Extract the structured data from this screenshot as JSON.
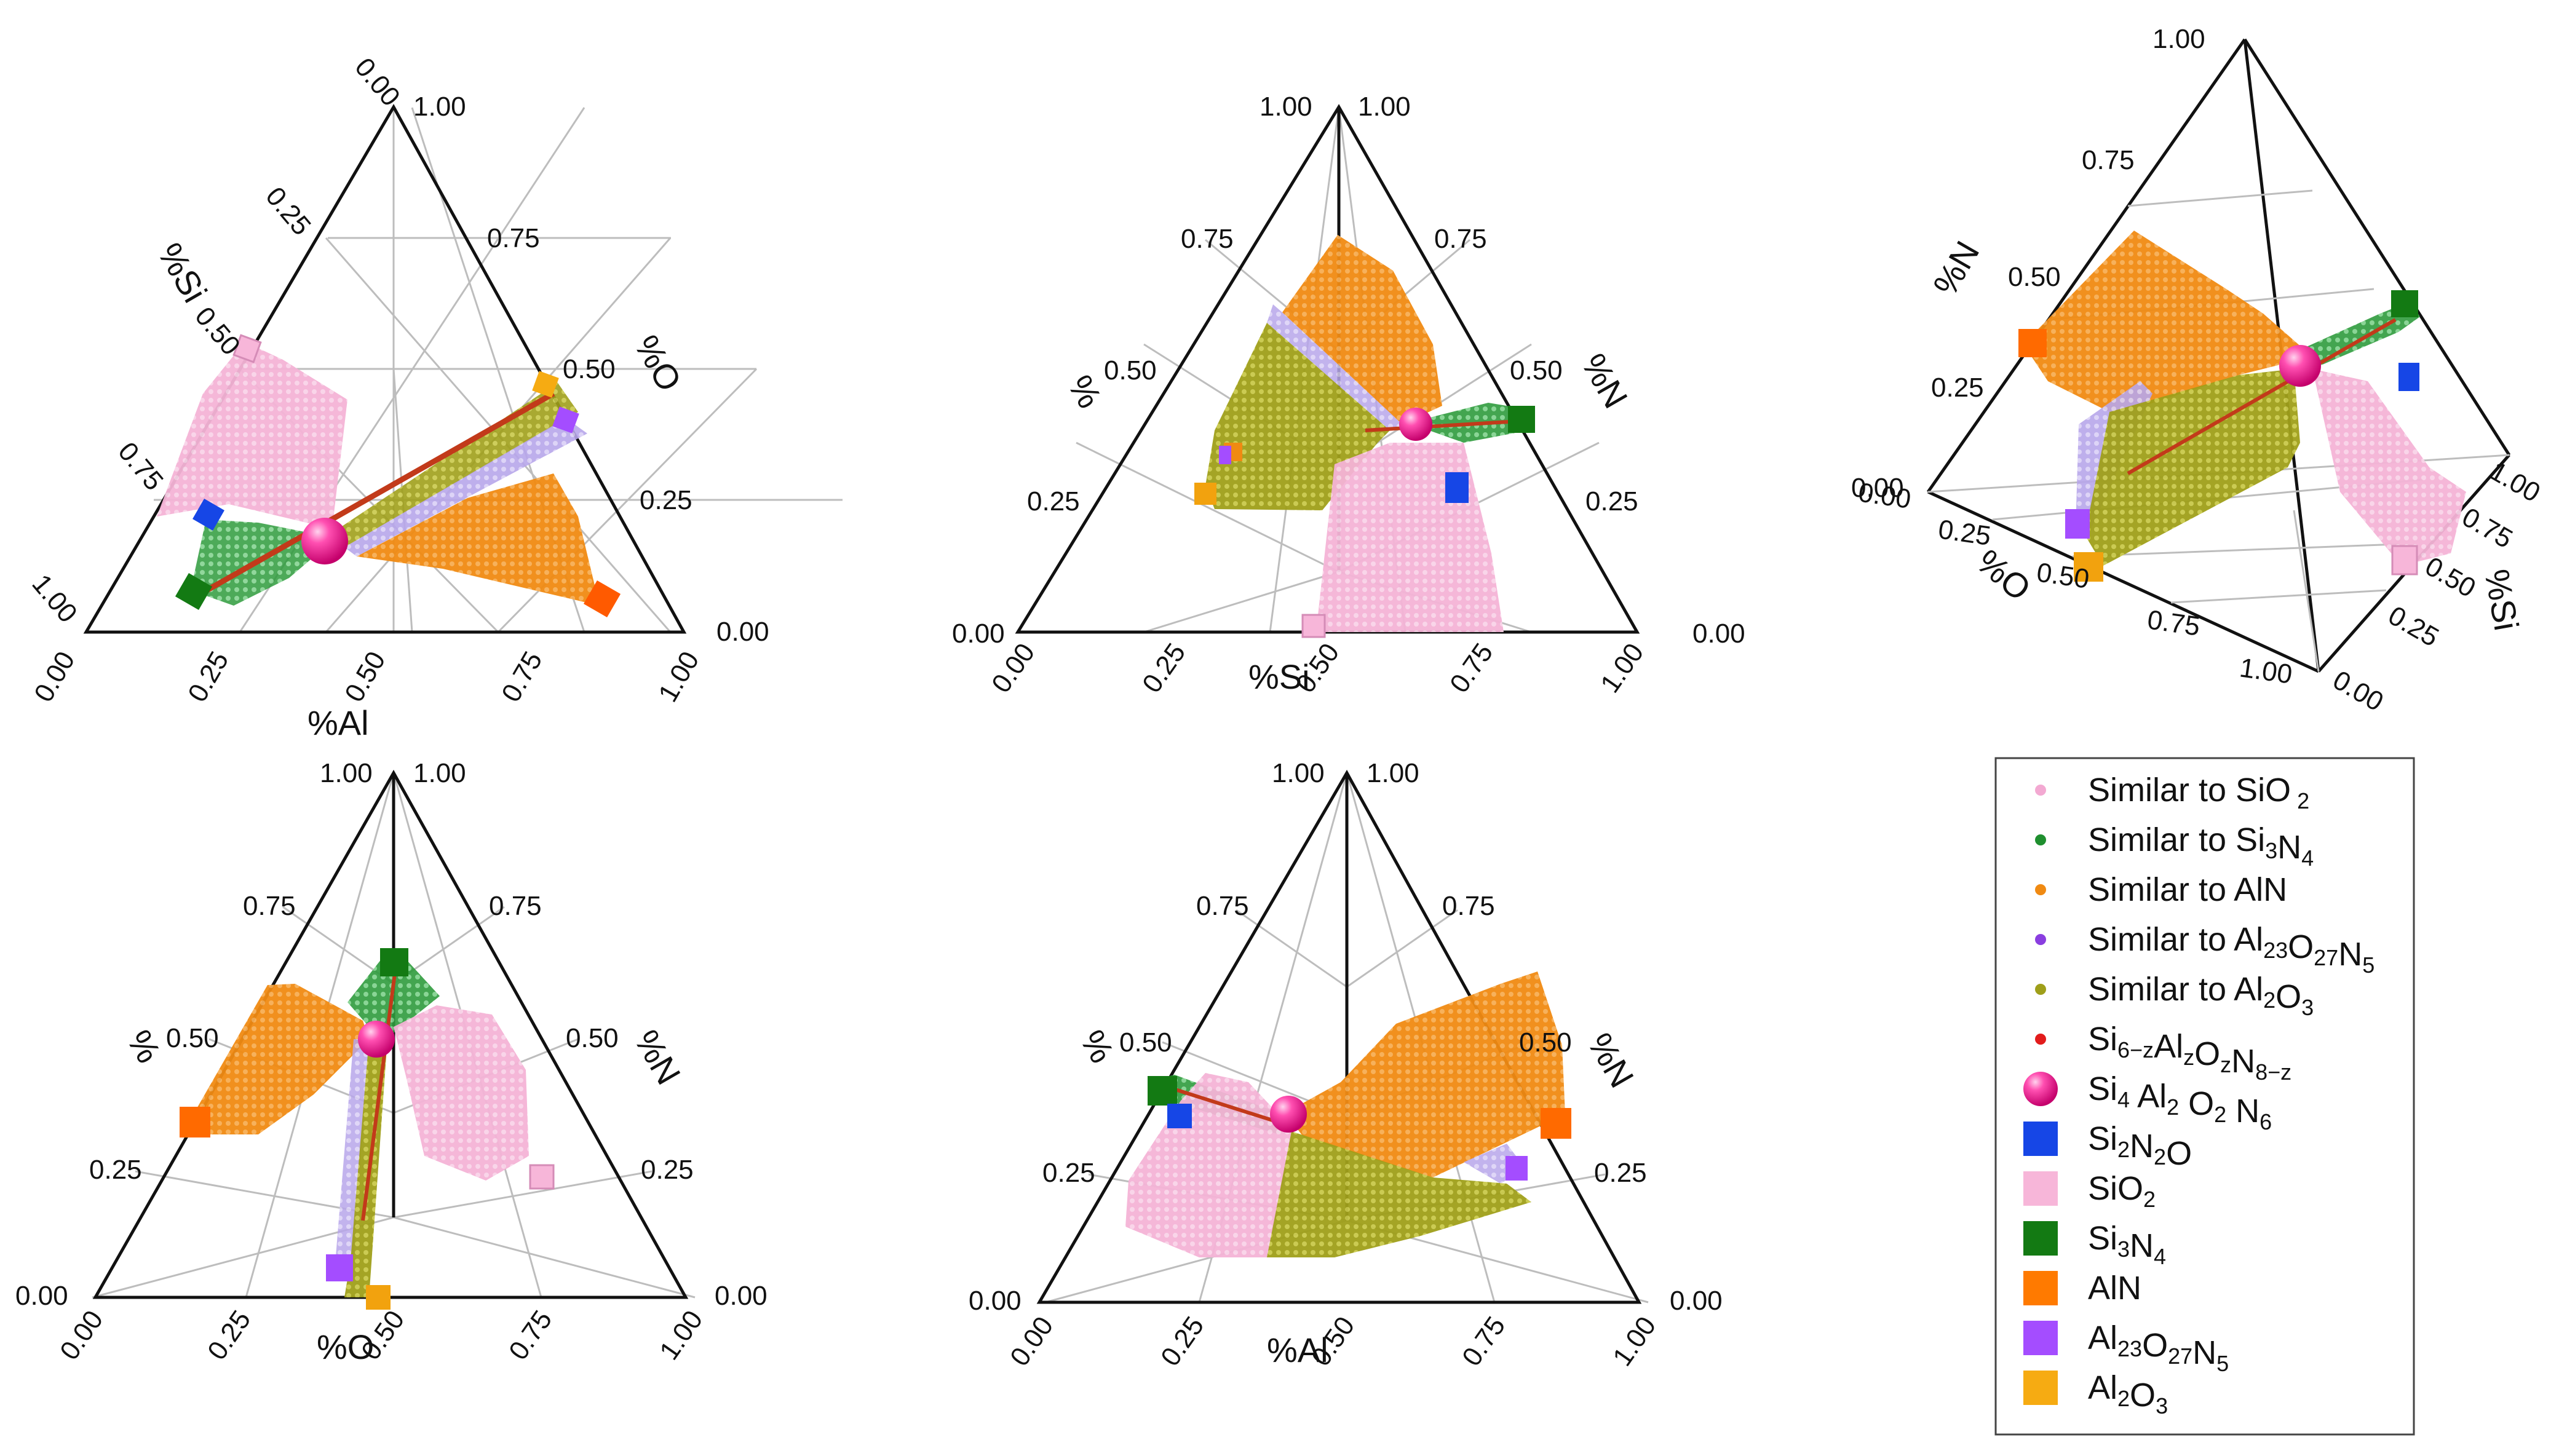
{
  "colors": {
    "sio2": "#f3a9d2",
    "si3n4": "#1f8f2f",
    "aln": "#f08a12",
    "al23o27n5": "#9b4de0",
    "al2o3": "#9f9f1a",
    "sialon_line": "#c23a1a",
    "sialon_sphere": "#ff2f9a",
    "si2n2o": "#1646e6",
    "al2o3_marker": "#f2a20e",
    "si3n4_marker": "#1e7a1e",
    "aln_marker": "#ff7a00",
    "al23_marker": "#a44dff",
    "sio2_marker": "#f5b9d8"
  },
  "chart_data": [
    {
      "type": "ternary",
      "panel": "top-left",
      "tick_labels": {
        "left": [
          "0.00",
          "0.25",
          "0.50",
          "0.75",
          "1.00"
        ],
        "right": [
          "1.00",
          "0.75",
          "0.50",
          "0.25",
          "0.00"
        ],
        "bottom": [
          "0.00",
          "0.25",
          "0.50",
          "0.75",
          "1.00"
        ]
      },
      "axis_labels": {
        "left": "%Si",
        "right": "%O",
        "bottom": "%Al"
      }
    },
    {
      "type": "ternary",
      "panel": "top-middle",
      "tick_labels": {
        "left": [
          "0.00",
          "0.25",
          "0.50",
          "0.75",
          "1.00"
        ],
        "right": [
          "1.00",
          "0.75",
          "0.50",
          "0.25",
          "0.00"
        ],
        "bottom": [
          "0.00",
          "0.25",
          "0.50",
          "0.75",
          "1.00"
        ]
      },
      "axis_labels": {
        "left": "%",
        "right": "%N",
        "bottom": "%Si"
      }
    },
    {
      "type": "tetrahedron",
      "panel": "top-right",
      "tick_labels": {
        "vertical": [
          "1.00",
          "0.75",
          "0.50",
          "0.25",
          "0.00"
        ],
        "left_edge": [
          "0.00",
          "0.25",
          "0.50",
          "0.75",
          "1.00"
        ],
        "right_edge": [
          "1.00",
          "0.75",
          "0.50",
          "0.25",
          "0.00"
        ],
        "left_corner": "0.00"
      },
      "axis_labels": {
        "vertical": "%N",
        "left_edge": "%O",
        "right_edge": "%Si"
      }
    },
    {
      "type": "ternary",
      "panel": "bottom-left",
      "tick_labels": {
        "left": [
          "0.00",
          "0.25",
          "0.50",
          "0.75",
          "1.00"
        ],
        "right": [
          "1.00",
          "0.75",
          "0.50",
          "0.25",
          "0.00"
        ],
        "bottom": [
          "0.00",
          "0.25",
          "0.50",
          "0.75",
          "1.00"
        ]
      },
      "axis_labels": {
        "left": "%",
        "right": "%N",
        "bottom": "%O"
      }
    },
    {
      "type": "ternary",
      "panel": "bottom-middle",
      "tick_labels": {
        "left": [
          "0.00",
          "0.25",
          "0.50",
          "0.75",
          "1.00"
        ],
        "right": [
          "1.00",
          "0.75",
          "0.50",
          "0.25",
          "0.00"
        ],
        "bottom": [
          "0.00",
          "0.25",
          "0.50",
          "0.75",
          "1.00"
        ]
      },
      "axis_labels": {
        "left": "%",
        "right": "%N",
        "bottom": "%Al"
      }
    }
  ],
  "legend": [
    {
      "marker": "dot",
      "color": "#f3a9d2",
      "parts": [
        [
          "Similar to SiO",
          ""
        ],
        [
          " 2",
          "sub"
        ]
      ]
    },
    {
      "marker": "dot",
      "color": "#1f8f2f",
      "parts": [
        [
          "Similar to Si",
          ""
        ],
        [
          "3",
          "sub"
        ],
        [
          "N",
          ""
        ],
        [
          "4",
          "sub"
        ]
      ]
    },
    {
      "marker": "dot",
      "color": "#f08a12",
      "parts": [
        [
          "Similar to AlN",
          ""
        ]
      ]
    },
    {
      "marker": "dot",
      "color": "#8a3ee0",
      "parts": [
        [
          "Similar to Al",
          ""
        ],
        [
          "23",
          "sub"
        ],
        [
          "O",
          ""
        ],
        [
          "27",
          "sub"
        ],
        [
          "N",
          ""
        ],
        [
          "5",
          "sub"
        ]
      ]
    },
    {
      "marker": "dot",
      "color": "#9f9f1a",
      "parts": [
        [
          "Similar to Al",
          ""
        ],
        [
          "2",
          "sub"
        ],
        [
          "O",
          ""
        ],
        [
          "3",
          "sub"
        ]
      ]
    },
    {
      "marker": "dot",
      "color": "#e21c1c",
      "parts": [
        [
          "Si",
          ""
        ],
        [
          "6−z",
          "sub"
        ],
        [
          "Al",
          ""
        ],
        [
          "z",
          "sub"
        ],
        [
          "O",
          ""
        ],
        [
          "z",
          "sub"
        ],
        [
          "N",
          ""
        ],
        [
          "8−z",
          "sub"
        ]
      ]
    },
    {
      "marker": "sphere",
      "color": "#ff2f9a",
      "parts": [
        [
          "Si",
          ""
        ],
        [
          "4",
          "sub"
        ],
        [
          " Al",
          ""
        ],
        [
          "2",
          "sub"
        ],
        [
          " O",
          ""
        ],
        [
          "2",
          "sub"
        ],
        [
          " N",
          ""
        ],
        [
          "6",
          "sub"
        ]
      ]
    },
    {
      "marker": "square",
      "color": "#1646e6",
      "parts": [
        [
          "Si",
          ""
        ],
        [
          "2",
          "sub"
        ],
        [
          "N",
          ""
        ],
        [
          "2",
          "sub"
        ],
        [
          "O",
          ""
        ]
      ]
    },
    {
      "marker": "square",
      "color": "#f7b6d9",
      "parts": [
        [
          "SiO",
          ""
        ],
        [
          "2",
          "sub"
        ]
      ]
    },
    {
      "marker": "square",
      "color": "#137a13",
      "parts": [
        [
          "Si",
          ""
        ],
        [
          "3",
          "sub"
        ],
        [
          "N",
          ""
        ],
        [
          "4",
          "sub"
        ]
      ]
    },
    {
      "marker": "square",
      "color": "#ff7a00",
      "parts": [
        [
          "AlN",
          ""
        ]
      ]
    },
    {
      "marker": "square",
      "color": "#a44dff",
      "parts": [
        [
          "Al",
          ""
        ],
        [
          "23",
          "sub"
        ],
        [
          "O",
          ""
        ],
        [
          "27",
          "sub"
        ],
        [
          "N",
          ""
        ],
        [
          "5",
          "sub"
        ]
      ]
    },
    {
      "marker": "square",
      "color": "#f6ab12",
      "parts": [
        [
          "Al",
          ""
        ],
        [
          "2",
          "sub"
        ],
        [
          "O",
          ""
        ],
        [
          "3",
          "sub"
        ]
      ]
    }
  ]
}
